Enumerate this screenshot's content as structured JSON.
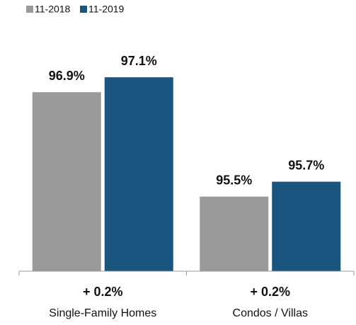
{
  "chart_data": {
    "type": "bar",
    "categories": [
      "Single-Family Homes",
      "Condos / Villas"
    ],
    "annotations": [
      "+ 0.2%",
      "+ 0.2%"
    ],
    "series": [
      {
        "name": "11-2018",
        "color": "#9a9a9a",
        "values": [
          96.9,
          95.5
        ],
        "value_labels": [
          "96.9%",
          "95.5%"
        ]
      },
      {
        "name": "11-2019",
        "color": "#1a5580",
        "values": [
          97.1,
          95.7
        ],
        "value_labels": [
          "97.1%",
          "95.7%"
        ]
      }
    ],
    "ylim": [
      94.5,
      97.5
    ],
    "legend": "top-left"
  }
}
